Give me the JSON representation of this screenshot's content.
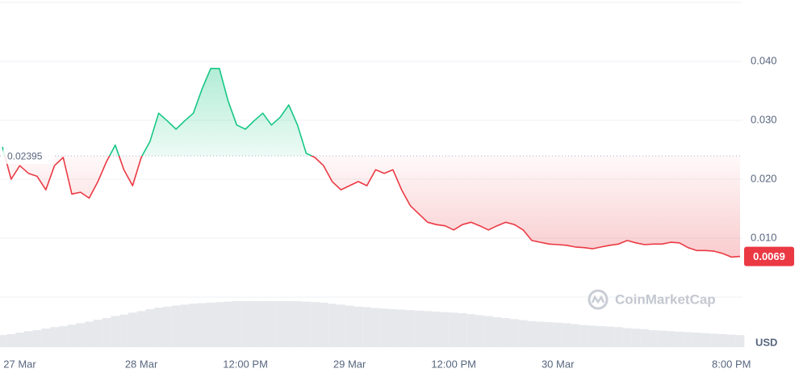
{
  "chart_data": {
    "type": "line",
    "currency_label": "USD",
    "watermark": "CoinMarketCap",
    "baseline": 0.02395,
    "above_color": "#16c784",
    "below_color": "#ea3943",
    "categories": [
      null,
      null,
      "27 Mar",
      null,
      null,
      null,
      null,
      null,
      null,
      null,
      null,
      null,
      null,
      null,
      null,
      null,
      "28 Mar",
      null,
      null,
      null,
      null,
      null,
      null,
      null,
      null,
      null,
      null,
      null,
      "12:00 PM",
      null,
      null,
      null,
      null,
      null,
      null,
      null,
      null,
      null,
      null,
      null,
      "29 Mar",
      null,
      null,
      null,
      null,
      null,
      null,
      null,
      null,
      null,
      null,
      null,
      "12:00 PM",
      null,
      null,
      null,
      null,
      null,
      null,
      null,
      null,
      null,
      null,
      null,
      "30 Mar",
      null,
      null,
      null,
      null,
      null,
      null,
      null,
      null,
      null,
      null,
      null,
      null,
      null,
      null,
      null,
      null,
      null,
      null,
      null,
      "8:00 PM",
      null
    ],
    "series": [
      {
        "values": [
          0.0255,
          0.02,
          0.0223,
          0.021,
          0.0205,
          0.0182,
          0.0223,
          0.0237,
          0.0175,
          0.0178,
          0.0168,
          0.0196,
          0.023,
          0.0258,
          0.0216,
          0.0189,
          0.0237,
          0.0264,
          0.0312,
          0.0299,
          0.0285,
          0.0299,
          0.0312,
          0.0353,
          0.0388,
          0.0388,
          0.0333,
          0.0292,
          0.0285,
          0.0299,
          0.0312,
          0.0292,
          0.0305,
          0.0326,
          0.0292,
          0.0244,
          0.0237,
          0.0223,
          0.0196,
          0.0182,
          0.0189,
          0.0196,
          0.0189,
          0.0216,
          0.021,
          0.0216,
          0.0182,
          0.0155,
          0.0141,
          0.0127,
          0.0123,
          0.0121,
          0.0114,
          0.0123,
          0.0127,
          0.0121,
          0.0114,
          0.0121,
          0.0127,
          0.0123,
          0.0114,
          0.0096,
          0.0093,
          0.009,
          0.0089,
          0.0088,
          0.0085,
          0.0084,
          0.0082,
          0.0085,
          0.0088,
          0.009,
          0.0096,
          0.0092,
          0.0089,
          0.009,
          0.009,
          0.0093,
          0.0092,
          0.0084,
          0.0079,
          0.0079,
          0.0078,
          0.0074,
          0.0068,
          0.0069
        ]
      },
      {
        "axis": "y2",
        "color": "#e6e8ec",
        "values": [
          24,
          26,
          29,
          32,
          34,
          37,
          40,
          42,
          45,
          48,
          51,
          55,
          58,
          62,
          65,
          69,
          72,
          76,
          79,
          81,
          83,
          85,
          87,
          88,
          89,
          90,
          91,
          92,
          92,
          92,
          92,
          92,
          92,
          92,
          92,
          91,
          90,
          89,
          87,
          85,
          83,
          81,
          80,
          78,
          77,
          76,
          75,
          74,
          73,
          72,
          71,
          70,
          69,
          68,
          66,
          64,
          62,
          60,
          58,
          56,
          54,
          52,
          51,
          50,
          49,
          48,
          46,
          44,
          43,
          42,
          41,
          40,
          38,
          37,
          36,
          34,
          33,
          32,
          31,
          30,
          29,
          28,
          27,
          26,
          25,
          24
        ]
      }
    ],
    "ylim": [
      0,
      0.05
    ],
    "yticks": [
      {
        "value": 0.01,
        "label": "0.010"
      },
      {
        "value": 0.02,
        "label": "0.020"
      },
      {
        "value": 0.03,
        "label": "0.030"
      },
      {
        "value": 0.04,
        "label": "0.040"
      }
    ],
    "y2lim": [
      0,
      100
    ],
    "grid": true
  }
}
